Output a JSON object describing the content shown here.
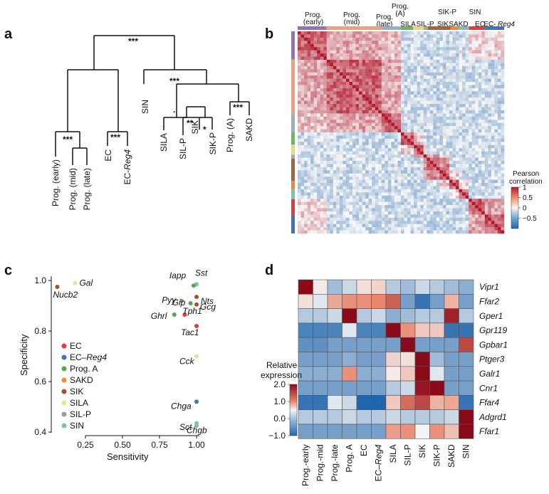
{
  "panels": {
    "a": "a",
    "b": "b",
    "c": "c",
    "d": "d"
  },
  "dendrogram": {
    "top_sig": "***",
    "left_sig": "***",
    "ec_sig": "***",
    "right_sig": "***",
    "sila_sig": ".",
    "silp_sig": "**",
    "sik_sig": "*",
    "proga_sig": "***",
    "leaves": [
      "Prog. (early)",
      "Prog. (mid)",
      "Prog. (late)",
      "EC",
      "EC-Reg4",
      "SIN",
      "SILA",
      "SIL-P",
      "SIK",
      "SIK-P",
      "Prog. (A)",
      "SAKD"
    ]
  },
  "corr": {
    "groups": [
      {
        "label": "Prog.\n(early)",
        "color": "#9a6fb3"
      },
      {
        "label": "Prog.\n(mid)",
        "color": "#f0a078"
      },
      {
        "label": "Prog.\n(late)",
        "color": "#94b1cc"
      },
      {
        "label": "Prog.\n(A)",
        "color": "#69b85c"
      },
      {
        "label": "SILA",
        "color": "#ead97a"
      },
      {
        "label": "SIL-P",
        "color": "#a8a8a8"
      },
      {
        "label": "SIK-P",
        "color": "#a66339"
      },
      {
        "label": "SIK",
        "color": "#a66339"
      },
      {
        "label": "SAKD",
        "color": "#f08a2c"
      },
      {
        "label": "SIN",
        "color": "#7fbfb0"
      },
      {
        "label": "EC",
        "color": "#e03c3c"
      },
      {
        "label": "EC-Reg4",
        "color": "#3a78b5"
      }
    ],
    "top_labels": [
      "Prog.",
      "(early)",
      "Prog.",
      "(mid)",
      "Prog.",
      "(late)",
      "Prog.",
      "(A)",
      "SILA",
      "SIL-P",
      "SIK-P",
      "SIK",
      "SAKD",
      "SIN",
      "EC",
      "EC-",
      "Reg4"
    ],
    "legend_title": [
      "Pearson",
      "correlation"
    ],
    "legend_ticks": [
      "1",
      "0.5",
      "0",
      "−0.5"
    ],
    "legend_values": [
      1,
      0.5,
      0,
      -0.5
    ]
  },
  "chart_data": [
    {
      "type": "scatter",
      "xlabel": "Sensitivity",
      "ylabel": "Specificity",
      "xlim": [
        0,
        1.05
      ],
      "ylim": [
        0.4,
        1.02
      ],
      "xticks": [
        "0.25",
        "0.50",
        "0.75",
        "1.00"
      ],
      "xtick_values": [
        0.25,
        0.5,
        0.75,
        1.0
      ],
      "yticks": [
        "0.4",
        "0.6",
        "0.8",
        "1.0"
      ],
      "ytick_values": [
        0.4,
        0.6,
        0.8,
        1.0
      ],
      "legend": [
        {
          "name": "EC",
          "color": "#e03c3c"
        },
        {
          "name": "EC–Reg4",
          "color": "#3a78b5"
        },
        {
          "name": "Prog. A",
          "color": "#55a84b"
        },
        {
          "name": "SAKD",
          "color": "#f08a2c"
        },
        {
          "name": "SIK",
          "color": "#a3532a"
        },
        {
          "name": "SILA",
          "color": "#ede08a"
        },
        {
          "name": "SIL-P",
          "color": "#9c9c9c"
        },
        {
          "name": "SIN",
          "color": "#7fbfb0"
        }
      ],
      "points": [
        {
          "gene": "Gal",
          "x": 0.18,
          "y": 0.99,
          "color": "#ede08a"
        },
        {
          "gene": "Nucb2",
          "x": 0.06,
          "y": 0.975,
          "color": "#a3532a"
        },
        {
          "gene": "Sst",
          "x": 1.0,
          "y": 0.985,
          "color": "#7fbfb0"
        },
        {
          "gene": "Iapp",
          "x": 0.98,
          "y": 0.98,
          "color": "#55a84b"
        },
        {
          "gene": "Pyy",
          "x": 0.9,
          "y": 0.92,
          "color": "#9c9c9c"
        },
        {
          "gene": "Nts",
          "x": 1.0,
          "y": 0.935,
          "color": "#a3532a"
        },
        {
          "gene": "Gip",
          "x": 0.96,
          "y": 0.91,
          "color": "#55a84b"
        },
        {
          "gene": "Gcg",
          "x": 1.0,
          "y": 0.905,
          "color": "#a3532a"
        },
        {
          "gene": "Ghrl",
          "x": 0.85,
          "y": 0.865,
          "color": "#55a84b"
        },
        {
          "gene": "Tph1",
          "x": 0.92,
          "y": 0.865,
          "color": "#e03c3c"
        },
        {
          "gene": "Tac1",
          "x": 1.0,
          "y": 0.82,
          "color": "#e03c3c"
        },
        {
          "gene": "Cck",
          "x": 1.0,
          "y": 0.7,
          "color": "#ede08a"
        },
        {
          "gene": "Chga",
          "x": 1.0,
          "y": 0.52,
          "color": "#3a78b5"
        },
        {
          "gene": "Chgb",
          "x": 1.0,
          "y": 0.435,
          "color": "#7fbfb0"
        },
        {
          "gene": "Sct",
          "x": 1.0,
          "y": 0.425,
          "color": "#7fbfb0"
        }
      ]
    },
    {
      "type": "heatmap",
      "rows": [
        "Vipr1",
        "Ffar2",
        "Gper1",
        "Gpr119",
        "Gpbar1",
        "Ptger3",
        "Galr1",
        "Cnr1",
        "Ffar4",
        "Adgrd1",
        "Ffar1"
      ],
      "cols": [
        "Prog.-early",
        "Prog.-mid",
        "Prog.-late",
        "Prog. A",
        "EC",
        "EC–Reg4",
        "SILA",
        "SIL-P",
        "SIK",
        "SIK-P",
        "SAKD",
        "SIN"
      ],
      "values": [
        [
          2.0,
          0.1,
          -0.4,
          -0.2,
          0.2,
          0.3,
          -0.3,
          -0.4,
          -0.2,
          -0.3,
          -0.4,
          -0.5
        ],
        [
          0.2,
          -0.1,
          0.7,
          0.9,
          0.9,
          1.0,
          1.3,
          -0.6,
          -0.9,
          -0.6,
          0.6,
          -0.6
        ],
        [
          -0.3,
          -0.3,
          -0.2,
          2.0,
          -0.3,
          -0.2,
          -0.5,
          -0.4,
          -0.3,
          -0.3,
          1.8,
          -0.3
        ],
        [
          -0.8,
          -0.8,
          -0.8,
          -0.1,
          -0.8,
          -0.8,
          2.0,
          0.9,
          0.4,
          0.4,
          -0.9,
          -0.9
        ],
        [
          -0.7,
          -0.7,
          -0.6,
          -0.6,
          -0.6,
          -0.6,
          -0.6,
          2.0,
          -0.6,
          -0.6,
          -0.6,
          1.5
        ],
        [
          -0.6,
          -0.6,
          -0.6,
          -0.5,
          -0.6,
          -0.6,
          0.3,
          0.2,
          2.0,
          -0.4,
          -0.6,
          -0.6
        ],
        [
          -0.5,
          -0.5,
          -0.5,
          0.9,
          -0.5,
          -0.5,
          0.1,
          0.4,
          2.0,
          -0.1,
          -0.6,
          -0.6
        ],
        [
          -0.6,
          -0.6,
          -0.6,
          -0.6,
          -0.6,
          -0.6,
          -0.3,
          -0.2,
          1.9,
          2.0,
          -0.6,
          -0.6
        ],
        [
          -0.9,
          -0.9,
          -0.1,
          -0.2,
          -1.0,
          -1.0,
          0.4,
          1.2,
          1.5,
          0.6,
          0.7,
          -0.9
        ],
        [
          -0.3,
          -0.3,
          -0.3,
          -0.2,
          -0.3,
          -0.3,
          -0.2,
          -0.3,
          -0.3,
          -0.3,
          -0.2,
          2.0
        ],
        [
          -0.6,
          -0.6,
          -0.6,
          -0.6,
          -0.6,
          -0.6,
          0.8,
          0.9,
          0.0,
          0.9,
          0.5,
          2.0
        ]
      ],
      "legend_title": [
        "Relative",
        "expression"
      ],
      "legend_ticks": [
        "2.0",
        "1.0",
        "0.0",
        "−1.0"
      ],
      "legend_values": [
        2.0,
        1.0,
        0.0,
        -1.0
      ],
      "range": [
        -1.0,
        2.0
      ]
    }
  ]
}
